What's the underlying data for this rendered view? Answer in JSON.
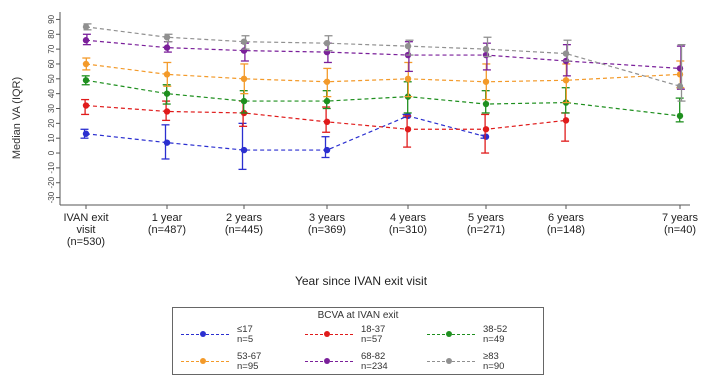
{
  "chart_data": {
    "type": "line",
    "xlabel": "Year since IVAN exit visit",
    "ylabel": "Median VA (IQR)",
    "ylim": [
      -35,
      95
    ],
    "yticks": [
      90,
      80,
      70,
      60,
      50,
      40,
      30,
      20,
      10,
      0,
      -10,
      -20,
      -30
    ],
    "categories": [
      [
        "IVAN exit",
        "visit",
        "(n=530)"
      ],
      [
        "1 year",
        "(n=487)"
      ],
      [
        "2 years",
        "(n=445)"
      ],
      [
        "3 years",
        "(n=369)"
      ],
      [
        "4 years",
        "(n=310)"
      ],
      [
        "5 years",
        "(n=271)"
      ],
      [
        "6 years",
        "(n=148)"
      ],
      [
        "7 years",
        "(n=40)"
      ]
    ],
    "legend_title": "BCVA at IVAN exit",
    "series": [
      {
        "name": "≤17",
        "n": "n=5",
        "color": "#2b2fd0",
        "values": [
          13,
          7,
          2,
          2,
          25,
          11,
          null,
          null
        ],
        "low": [
          10,
          -4,
          -11,
          -3,
          24,
          10,
          null,
          null
        ],
        "high": [
          16,
          19,
          20,
          11,
          26,
          12,
          null,
          null
        ]
      },
      {
        "name": "18-37",
        "n": "n=57",
        "color": "#e01b1b",
        "values": [
          32,
          28,
          27,
          21,
          16,
          16,
          22,
          null
        ],
        "low": [
          26,
          22,
          18,
          14,
          4,
          0,
          8,
          null
        ],
        "high": [
          36,
          35,
          35,
          31,
          25,
          26,
          27,
          null
        ]
      },
      {
        "name": "38-52",
        "n": "n=49",
        "color": "#1e8f1e",
        "values": [
          49,
          40,
          35,
          35,
          38,
          33,
          34,
          25
        ],
        "low": [
          46,
          33,
          27,
          30,
          27,
          27,
          27,
          21
        ],
        "high": [
          52,
          46,
          42,
          42,
          48,
          42,
          44,
          37
        ]
      },
      {
        "name": "53-67",
        "n": "n=95",
        "color": "#f39a2a",
        "values": [
          60,
          53,
          50,
          48,
          50,
          48,
          49,
          53
        ],
        "low": [
          56,
          45,
          40,
          38,
          38,
          36,
          34,
          44
        ],
        "high": [
          64,
          61,
          60,
          57,
          61,
          60,
          60,
          62
        ]
      },
      {
        "name": "68-82",
        "n": "n=234",
        "color": "#7a1f9a",
        "values": [
          76,
          71,
          69,
          68,
          66,
          66,
          62,
          57
        ],
        "low": [
          73,
          68,
          62,
          61,
          55,
          56,
          52,
          43
        ],
        "high": [
          80,
          75,
          74,
          74,
          75,
          74,
          73,
          72
        ]
      },
      {
        "name": "≥83",
        "n": "n=90",
        "color": "#909090",
        "values": [
          85,
          78,
          75,
          74,
          72,
          70,
          67,
          45
        ],
        "low": [
          83,
          75,
          70,
          69,
          66,
          65,
          62,
          35
        ],
        "high": [
          87,
          80,
          79,
          79,
          76,
          78,
          76,
          73
        ]
      }
    ]
  }
}
